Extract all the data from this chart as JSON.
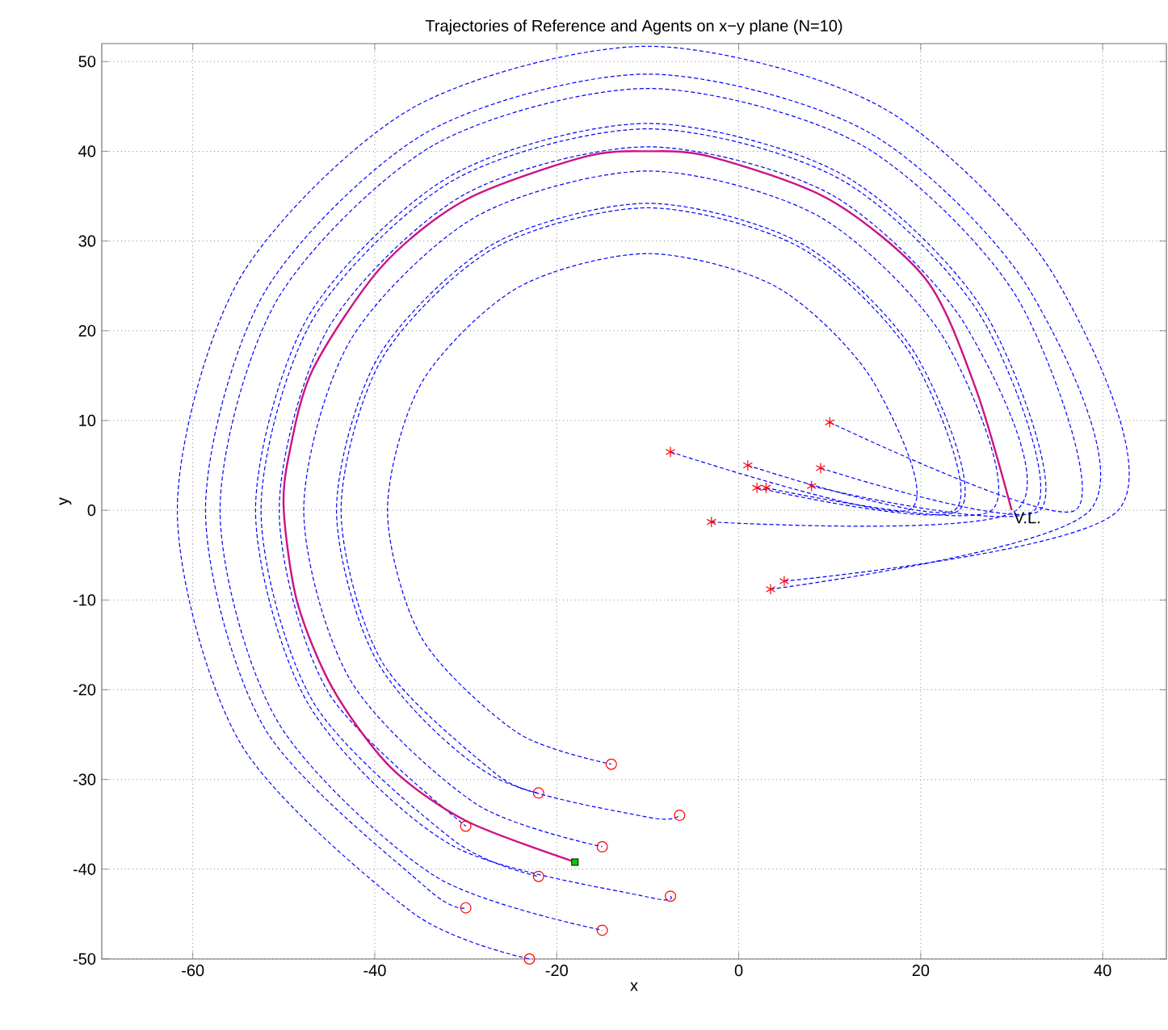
{
  "chart_data": {
    "type": "line",
    "title": "Trajectories of Reference and Agents on x−y plane (N=10)",
    "xlabel": "x",
    "ylabel": "y",
    "xlim": [
      -70,
      47
    ],
    "ylim": [
      -50,
      52
    ],
    "xticks": [
      -60,
      -40,
      -20,
      0,
      20,
      40
    ],
    "yticks": [
      -50,
      -40,
      -30,
      -20,
      -10,
      0,
      10,
      20,
      30,
      40,
      50
    ],
    "grid": true,
    "line_style": "dashed",
    "annotations": [
      {
        "text": "V.L.",
        "x": 30,
        "y": 0
      }
    ],
    "series": [
      {
        "type": "line",
        "color": "#0000ff",
        "x": [
          -7.5,
          18.6,
          14.8,
          4.3,
          -10,
          -24.3,
          -34.8,
          -38.6,
          -34.8,
          -24.3,
          -14
        ],
        "values": [
          6.5,
          0,
          14.3,
          24.8,
          28.6,
          24.8,
          14.3,
          0,
          -14.3,
          -24.8,
          -28.3
        ]
      },
      {
        "type": "line",
        "color": "#0000ff",
        "x": [
          1,
          23.7,
          19.2,
          6.9,
          -10,
          -26.9,
          -39.2,
          -43.7,
          -39.2,
          -26.9,
          -22
        ],
        "values": [
          5,
          0,
          16.9,
          29.2,
          33.7,
          29.2,
          16.9,
          0,
          -16.9,
          -29.2,
          -31.5
        ]
      },
      {
        "type": "line",
        "color": "#0000ff",
        "x": [
          2,
          24.2,
          19.6,
          7.1,
          -10,
          -27.1,
          -39.6,
          -44.2,
          -39.6,
          -27.1,
          -10,
          -6.5
        ],
        "values": [
          2.5,
          0,
          17.1,
          29.6,
          34.2,
          29.6,
          17.1,
          0,
          -17.1,
          -29.6,
          -34.2,
          -34
        ]
      },
      {
        "type": "line",
        "color": "#0000ff",
        "x": [
          3,
          27.8,
          22.7,
          8.9,
          -10,
          -28.9,
          -42.7,
          -47.8,
          -42.7,
          -28.9,
          -15
        ],
        "values": [
          2.5,
          0,
          18.9,
          32.7,
          37.8,
          32.7,
          18.9,
          0,
          -18.9,
          -32.7,
          -37.5
        ]
      },
      {
        "type": "line",
        "color": "#0000ff",
        "x": [
          -3,
          30.5,
          25.1,
          10.3,
          -10,
          -30.3,
          -45.1,
          -50.5,
          -45.1,
          -30
        ],
        "values": [
          -1.3,
          0,
          20.3,
          35.1,
          40.5,
          35.1,
          20.3,
          0,
          -20.3,
          -35.2
        ]
      },
      {
        "type": "line",
        "color": "#0000ff",
        "x": [
          8,
          32.5,
          26.8,
          11.3,
          -10,
          -31.3,
          -46.8,
          -52.5,
          -46.8,
          -31.3,
          -22
        ],
        "values": [
          2.7,
          0,
          21.3,
          36.8,
          42.5,
          36.8,
          21.3,
          0,
          -21.3,
          -36.8,
          -40.8
        ]
      },
      {
        "type": "line",
        "color": "#0000ff",
        "x": [
          9,
          33.1,
          27.3,
          11.6,
          -10,
          -31.6,
          -47.3,
          -53.1,
          -47.3,
          -31.6,
          -10,
          -7.5
        ],
        "values": [
          4.7,
          0,
          21.6,
          37.3,
          43.1,
          37.3,
          21.6,
          0,
          -21.6,
          -37.3,
          -43.1,
          -43
        ]
      },
      {
        "type": "line",
        "color": "#0000ff",
        "x": [
          10,
          37,
          30.7,
          13.5,
          -10,
          -33.5,
          -50.7,
          -57,
          -50.7,
          -33.5,
          -15
        ],
        "values": [
          9.8,
          0,
          23.5,
          40.7,
          47,
          40.7,
          23.5,
          0,
          -23.5,
          -40.7,
          -46.8
        ]
      },
      {
        "type": "line",
        "color": "#0000ff",
        "x": [
          3.5,
          38.6,
          32.1,
          14.3,
          -10,
          -34.3,
          -52.1,
          -58.6,
          -52.1,
          -34.3,
          -30
        ],
        "values": [
          -8.8,
          0,
          24.3,
          42.1,
          48.6,
          42.1,
          24.3,
          0,
          -24.3,
          -42.1,
          -44.3
        ]
      },
      {
        "type": "line",
        "color": "#0000ff",
        "x": [
          5,
          41.7,
          34.8,
          15.9,
          -10,
          -35.9,
          -54.8,
          -61.7,
          -54.8,
          -35.9,
          -23
        ],
        "values": [
          -7.9,
          0,
          25.9,
          44.8,
          51.7,
          44.8,
          25.9,
          0,
          -25.9,
          -44.8,
          -50
        ]
      },
      {
        "color": "#cc1480",
        "line_style": "solid",
        "x": [
          30,
          26,
          20.6,
          10,
          -3.1,
          -10,
          -16.9,
          -30,
          -39.2,
          -46.8,
          -49.4,
          -50,
          -48.5,
          -44.6,
          -38.3,
          -30,
          -18
        ],
        "values": [
          0,
          13.7,
          25.7,
          34.6,
          39.4,
          40,
          39.4,
          34.6,
          27.2,
          15.7,
          6.3,
          0,
          -10.3,
          -19.9,
          -28.6,
          -34.6,
          -39.2
        ]
      },
      {
        "type": "scatter",
        "marker": "cross",
        "color": "#ff0000",
        "x": [
          -7.5,
          1,
          2,
          3,
          -3,
          8,
          9,
          10,
          3.5,
          5
        ],
        "values": [
          6.5,
          5,
          2.5,
          2.5,
          -1.3,
          2.7,
          4.7,
          9.8,
          -8.8,
          -7.9
        ]
      },
      {
        "type": "scatter",
        "marker": "circle",
        "color": "#ff0000",
        "x": [
          -14,
          -22,
          -6.5,
          -15,
          -30,
          -22,
          -7.5,
          -15,
          -30,
          -23
        ],
        "values": [
          -28.3,
          -31.5,
          -34,
          -37.5,
          -35.2,
          -40.8,
          -43,
          -46.8,
          -44.3,
          -50
        ]
      },
      {
        "type": "scatter",
        "marker": "square",
        "color": "#00cc00",
        "x": [
          -18
        ],
        "values": [
          -39.2
        ]
      }
    ]
  }
}
